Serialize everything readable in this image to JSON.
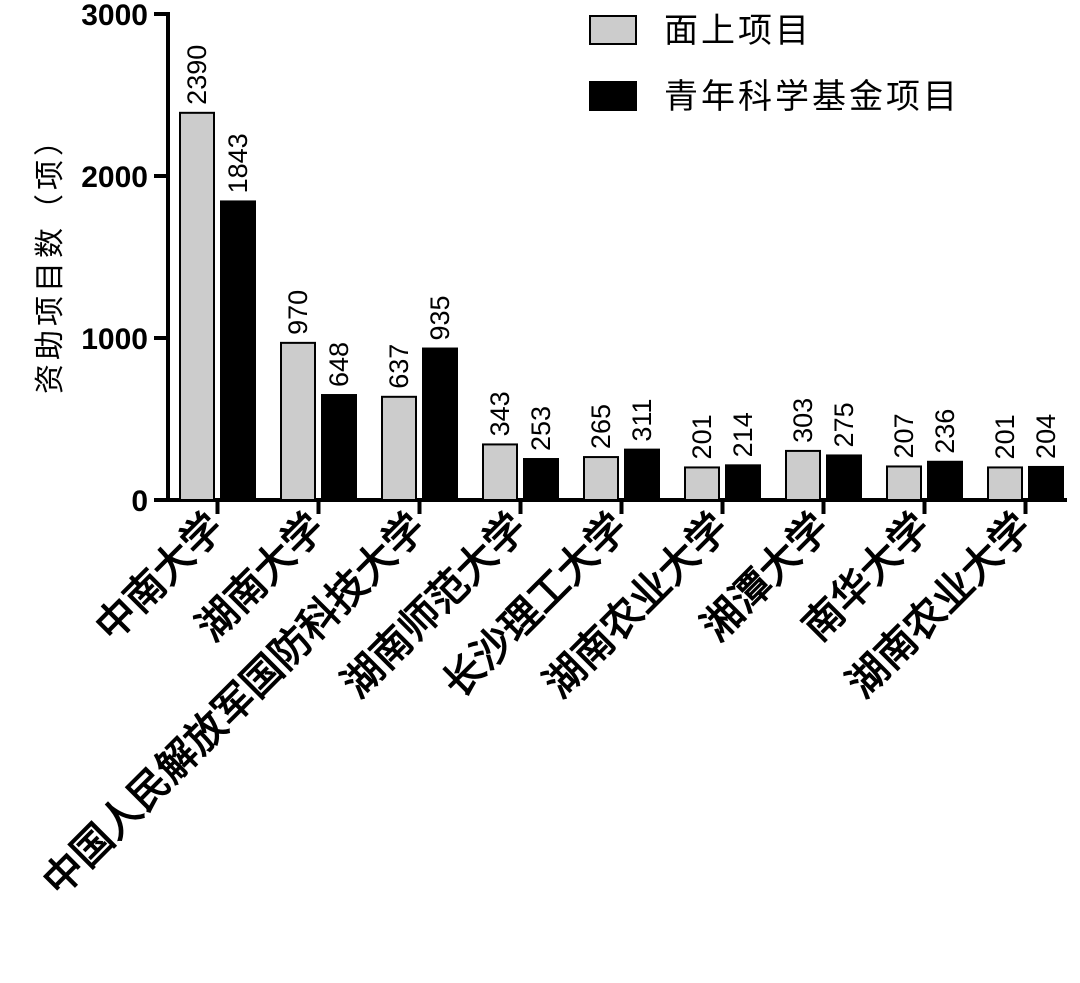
{
  "chart_data": {
    "type": "bar",
    "ylabel": "资助项目数（项）",
    "ylim": [
      0,
      3000
    ],
    "yticks": [
      "0",
      "1000",
      "2000",
      "3000"
    ],
    "grid": false,
    "legend_position": "top-right",
    "categories": [
      "中南大学",
      "湖南大学",
      "中国人民解放军国防科技大学",
      "湖南师范大学",
      "长沙理工大学",
      "湖南农业大学",
      "湘潭大学",
      "南华大学",
      "湖南农业大学"
    ],
    "series": [
      {
        "name": "面上项目",
        "color": "#cccccc",
        "values": [
          2390,
          970,
          637,
          343,
          265,
          201,
          303,
          207,
          201
        ]
      },
      {
        "name": "青年科学基金项目",
        "color": "#000000",
        "values": [
          1843,
          648,
          935,
          253,
          311,
          214,
          275,
          236,
          204
        ]
      }
    ]
  }
}
